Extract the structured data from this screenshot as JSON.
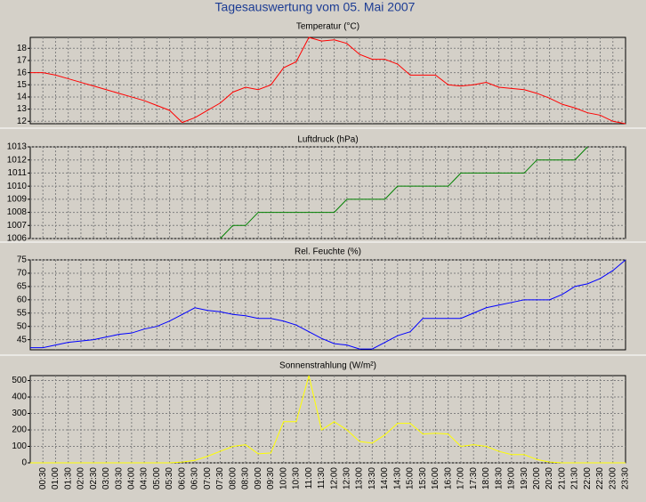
{
  "title": "Tagesauswertung vom 05. Mai 2007",
  "chart_data": [
    {
      "type": "line",
      "title": "Temperatur (°C)",
      "series": [
        {
          "name": "Temperatur",
          "color": "#ff0000",
          "values": [
            16.0,
            16.0,
            15.8,
            15.5,
            15.2,
            14.9,
            14.6,
            14.3,
            14.0,
            13.7,
            13.3,
            12.9,
            11.9,
            12.3,
            12.9,
            13.5,
            14.4,
            14.8,
            14.6,
            15.0,
            16.4,
            16.9,
            18.9,
            18.6,
            18.7,
            18.4,
            17.5,
            17.1,
            17.1,
            16.7,
            15.8,
            15.8,
            15.8,
            15.0,
            14.9,
            15.0,
            15.2,
            14.8,
            14.7,
            14.6,
            14.3,
            13.9,
            13.4,
            13.1,
            12.7,
            12.5,
            12.0,
            11.8
          ]
        }
      ],
      "ylim": [
        11.8,
        18.9
      ],
      "yticks": [
        12,
        13,
        14,
        15,
        16,
        17,
        18
      ],
      "grid": true
    },
    {
      "type": "line",
      "title": "Luftdruck (hPa)",
      "series": [
        {
          "name": "Luftdruck",
          "color": "#008000",
          "values": [
            null,
            null,
            null,
            null,
            null,
            null,
            null,
            null,
            null,
            null,
            null,
            null,
            null,
            null,
            null,
            1006,
            1007,
            1007,
            1008,
            1008,
            1008,
            1008,
            1008,
            1008,
            1008,
            1009,
            1009,
            1009,
            1009,
            1010,
            1010,
            1010,
            1010,
            1010,
            1011,
            1011,
            1011,
            1011,
            1011,
            1011,
            1012,
            1012,
            1012,
            1012,
            1013,
            null,
            null,
            null
          ]
        }
      ],
      "ylim": [
        1006,
        1013
      ],
      "yticks": [
        1006,
        1007,
        1008,
        1009,
        1010,
        1011,
        1012,
        1013
      ],
      "grid": true
    },
    {
      "type": "line",
      "title": "Rel. Feuchte (%)",
      "series": [
        {
          "name": "Rel. Feuchte",
          "color": "#0000ff",
          "values": [
            42,
            42,
            43,
            44,
            44.5,
            45,
            46,
            47,
            47.5,
            49,
            50,
            52,
            54.5,
            57,
            56,
            55.5,
            54.5,
            54,
            53,
            53,
            52,
            50.5,
            48,
            45.5,
            43.5,
            43,
            41.5,
            41.5,
            44,
            46.5,
            48,
            53,
            53,
            53,
            53,
            55,
            57,
            58,
            59,
            60,
            60,
            60,
            62,
            65,
            66,
            68,
            71,
            75
          ]
        }
      ],
      "ylim": [
        41.2,
        75
      ],
      "yticks": [
        45,
        50,
        55,
        60,
        65,
        70,
        75
      ],
      "grid": true
    },
    {
      "type": "line",
      "title": "Sonnenstrahlung (W/m²)",
      "categories": [
        null,
        "00:30",
        "01:00",
        "01:30",
        "02:00",
        "02:30",
        "03:00",
        "03:30",
        "04:00",
        "04:30",
        "05:00",
        "05:30",
        "06:00",
        "06:30",
        "07:00",
        "07:30",
        "08:00",
        "08:30",
        "09:00",
        "09:30",
        "10:00",
        "10:30",
        "11:00",
        "11:30",
        "12:00",
        "12:30",
        "13:00",
        "13:30",
        "14:00",
        "14:30",
        "15:00",
        "15:30",
        "16:00",
        "16:30",
        "17:00",
        "17:30",
        "18:00",
        "18:30",
        "19:00",
        "19:30",
        "20:00",
        "20:30",
        "21:00",
        "21:30",
        "22:00",
        "22:30",
        "23:00",
        "23:30"
      ],
      "series": [
        {
          "name": "Sonnenstrahlung",
          "color": "#ffff00",
          "values": [
            0,
            0,
            0,
            0,
            0,
            0,
            0,
            0,
            0,
            0,
            0,
            0,
            5,
            15,
            40,
            70,
            100,
            110,
            55,
            60,
            250,
            250,
            530,
            200,
            250,
            200,
            130,
            120,
            170,
            240,
            240,
            175,
            180,
            175,
            100,
            110,
            100,
            70,
            50,
            50,
            20,
            5,
            0,
            0,
            0,
            0,
            0,
            0
          ]
        }
      ],
      "ylim": [
        0,
        530
      ],
      "yticks": [
        0,
        100,
        200,
        300,
        400,
        500
      ],
      "grid": true
    }
  ]
}
